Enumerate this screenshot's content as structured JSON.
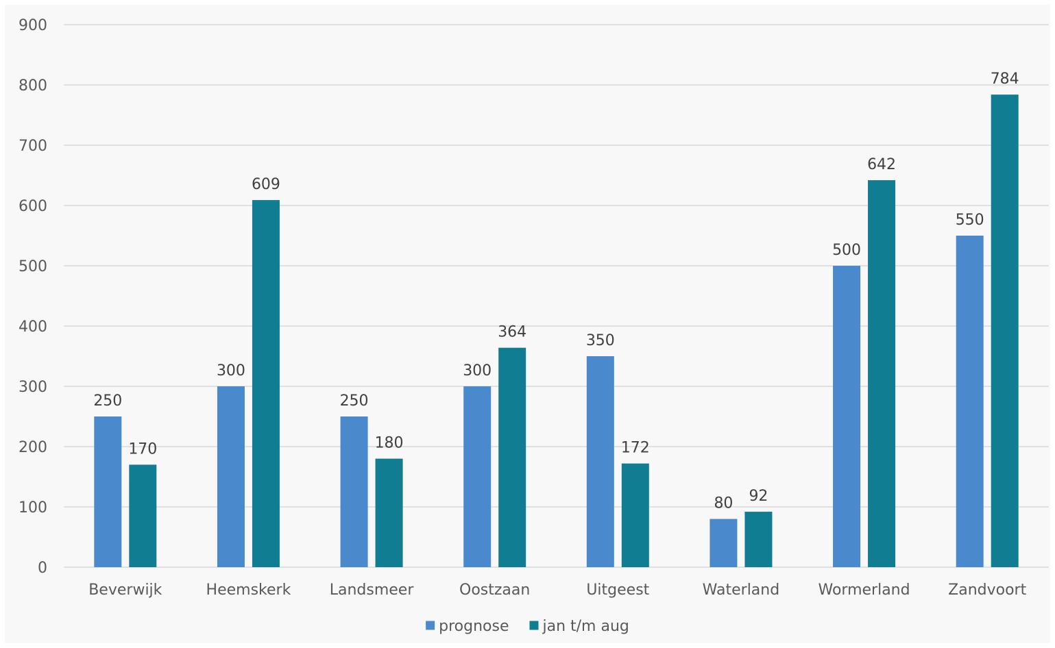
{
  "chart_data": {
    "type": "bar",
    "categories": [
      "Beverwijk",
      "Heemskerk",
      "Landsmeer",
      "Oostzaan",
      "Uitgeest",
      "Waterland",
      "Wormerland",
      "Zandvoort"
    ],
    "series": [
      {
        "name": "prognose",
        "values": [
          250,
          300,
          250,
          300,
          350,
          80,
          500,
          550
        ],
        "color": "#4a89cb"
      },
      {
        "name": "jan t/m aug",
        "values": [
          170,
          609,
          180,
          364,
          172,
          92,
          642,
          784
        ],
        "color": "#117d93"
      }
    ],
    "ylim": [
      0,
      900
    ],
    "yticks": [
      0,
      100,
      200,
      300,
      400,
      500,
      600,
      700,
      800,
      900
    ],
    "grid": true,
    "data_labels": true,
    "legend_position": "bottom"
  }
}
